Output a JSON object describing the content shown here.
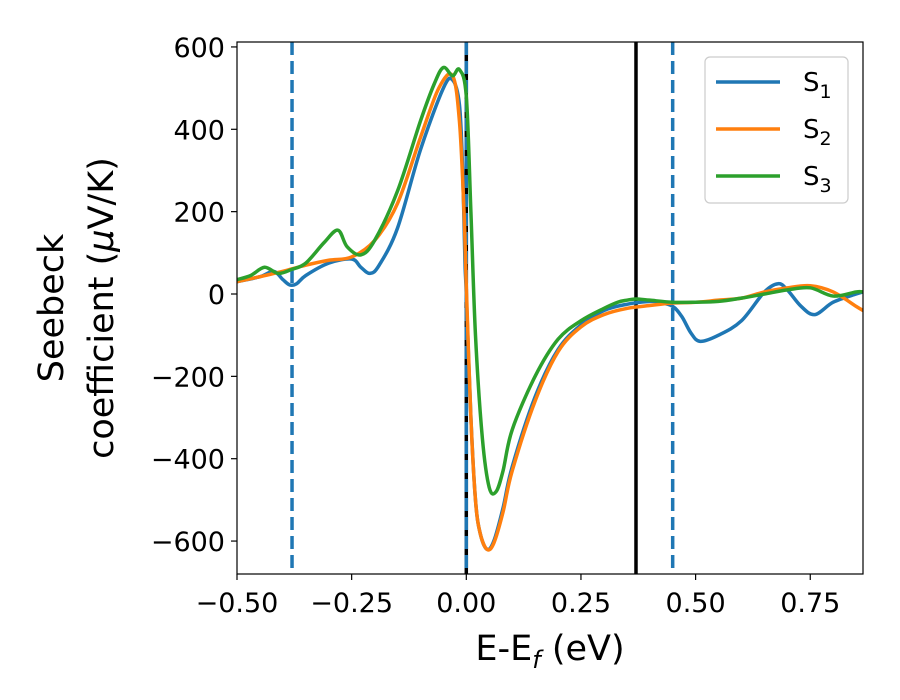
{
  "chart_data": {
    "type": "line",
    "xlabel": {
      "main": "E-E",
      "sub": "f",
      "unit": " (eV)"
    },
    "ylabel": {
      "line1": "Seebeck",
      "line2": "coefficient  (",
      "mu": "μ",
      "unit": "V/K)"
    },
    "xlim": [
      -0.5,
      0.865
    ],
    "ylim": [
      -680,
      612
    ],
    "xticks": [
      -0.5,
      -0.25,
      0.0,
      0.25,
      0.5,
      0.75
    ],
    "xtick_labels": [
      "−0.50",
      "−0.25",
      "0.00",
      "0.25",
      "0.50",
      "0.75"
    ],
    "yticks": [
      600,
      400,
      200,
      0,
      -200,
      -400,
      -600
    ],
    "ytick_labels": [
      "600",
      "400",
      "200",
      "0",
      "−200",
      "−400",
      "−600"
    ],
    "grid": false,
    "legend_position": "top-right",
    "vlines": [
      {
        "x": -0.38,
        "style": "dashed",
        "color": "#1f77b4"
      },
      {
        "x": 0.0,
        "style": "solid",
        "color": "#000000"
      },
      {
        "x": 0.0,
        "style": "dashed",
        "color": "#1f77b4"
      },
      {
        "x": 0.37,
        "style": "solid",
        "color": "#000000"
      },
      {
        "x": 0.45,
        "style": "dashed",
        "color": "#1f77b4"
      }
    ],
    "series": [
      {
        "name": "S",
        "sub": "1",
        "color": "#1f77b4",
        "x": [
          -0.5,
          -0.45,
          -0.42,
          -0.4,
          -0.385,
          -0.37,
          -0.35,
          -0.3,
          -0.25,
          -0.23,
          -0.21,
          -0.19,
          -0.15,
          -0.1,
          -0.05,
          -0.03,
          -0.015,
          -0.008,
          -0.003,
          0.0,
          0.01,
          0.02,
          0.03,
          0.045,
          0.06,
          0.08,
          0.1,
          0.15,
          0.2,
          0.25,
          0.3,
          0.35,
          0.4,
          0.42,
          0.45,
          0.47,
          0.49,
          0.51,
          0.55,
          0.6,
          0.65,
          0.68,
          0.7,
          0.73,
          0.76,
          0.8,
          0.85,
          0.865
        ],
        "y": [
          30,
          42,
          55,
          35,
          22,
          25,
          45,
          75,
          85,
          65,
          50,
          70,
          160,
          350,
          500,
          520,
          460,
          300,
          80,
          0,
          -300,
          -500,
          -580,
          -620,
          -600,
          -520,
          -420,
          -250,
          -135,
          -75,
          -40,
          -25,
          -18,
          -20,
          -30,
          -55,
          -95,
          -115,
          -100,
          -65,
          5,
          25,
          10,
          -30,
          -50,
          -20,
          0,
          5
        ]
      },
      {
        "name": "S",
        "sub": "2",
        "color": "#ff7f0e",
        "x": [
          -0.5,
          -0.45,
          -0.4,
          -0.35,
          -0.3,
          -0.25,
          -0.2,
          -0.15,
          -0.1,
          -0.06,
          -0.03,
          -0.015,
          -0.005,
          0.0,
          0.01,
          0.02,
          0.03,
          0.045,
          0.06,
          0.08,
          0.1,
          0.15,
          0.2,
          0.25,
          0.3,
          0.35,
          0.4,
          0.45,
          0.5,
          0.55,
          0.6,
          0.65,
          0.7,
          0.75,
          0.8,
          0.85,
          0.865
        ],
        "y": [
          30,
          42,
          55,
          70,
          82,
          90,
          130,
          220,
          380,
          500,
          530,
          420,
          200,
          20,
          -300,
          -500,
          -580,
          -620,
          -605,
          -530,
          -430,
          -260,
          -140,
          -80,
          -50,
          -35,
          -28,
          -22,
          -20,
          -15,
          -10,
          5,
          15,
          20,
          5,
          -30,
          -40
        ]
      },
      {
        "name": "S",
        "sub": "3",
        "color": "#2ca02c",
        "x": [
          -0.5,
          -0.47,
          -0.44,
          -0.41,
          -0.38,
          -0.35,
          -0.31,
          -0.28,
          -0.26,
          -0.23,
          -0.2,
          -0.15,
          -0.1,
          -0.07,
          -0.05,
          -0.03,
          -0.015,
          0.0,
          0.01,
          0.02,
          0.035,
          0.05,
          0.065,
          0.08,
          0.1,
          0.15,
          0.2,
          0.25,
          0.3,
          0.33,
          0.35,
          0.37,
          0.4,
          0.45,
          0.5,
          0.55,
          0.6,
          0.65,
          0.7,
          0.75,
          0.8,
          0.85,
          0.865
        ],
        "y": [
          35,
          45,
          65,
          50,
          60,
          75,
          125,
          155,
          115,
          95,
          130,
          250,
          420,
          510,
          550,
          530,
          545,
          480,
          200,
          -100,
          -350,
          -470,
          -480,
          -430,
          -330,
          -200,
          -110,
          -65,
          -35,
          -20,
          -15,
          -12,
          -15,
          -20,
          -20,
          -18,
          -10,
          0,
          10,
          15,
          -5,
          5,
          5
        ]
      }
    ]
  }
}
